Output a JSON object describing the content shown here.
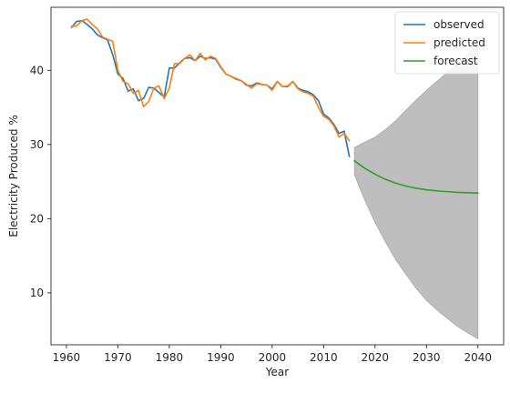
{
  "chart_data": {
    "type": "line",
    "title": "",
    "xlabel": "Year",
    "ylabel": "Electricity Produced %",
    "xlim": [
      1957,
      2045
    ],
    "ylim": [
      3,
      48.5
    ],
    "xticks": [
      1960,
      1970,
      1980,
      1990,
      2000,
      2010,
      2020,
      2030,
      2040
    ],
    "yticks": [
      10,
      20,
      30,
      40
    ],
    "grid": false,
    "legend_position": "top-right",
    "series": [
      {
        "name": "observed",
        "color": "#1f77b4",
        "x": [
          1961,
          1962,
          1963,
          1964,
          1965,
          1966,
          1967,
          1968,
          1969,
          1970,
          1971,
          1972,
          1973,
          1974,
          1975,
          1976,
          1977,
          1978,
          1979,
          1980,
          1981,
          1982,
          1983,
          1984,
          1985,
          1986,
          1987,
          1988,
          1989,
          1990,
          1991,
          1992,
          1993,
          1994,
          1995,
          1996,
          1997,
          1998,
          1999,
          2000,
          2001,
          2002,
          2003,
          2004,
          2005,
          2006,
          2007,
          2008,
          2009,
          2010,
          2011,
          2012,
          2013,
          2014,
          2015
        ],
        "y": [
          45.8,
          46.6,
          46.7,
          46.2,
          45.6,
          44.8,
          44.4,
          44.1,
          42.1,
          39.5,
          38.9,
          37.2,
          37.5,
          35.9,
          36.2,
          37.7,
          37.6,
          37.0,
          36.4,
          40.3,
          40.3,
          41.0,
          41.6,
          41.7,
          41.3,
          41.9,
          41.6,
          41.7,
          41.5,
          40.4,
          39.5,
          39.2,
          38.8,
          38.6,
          38.0,
          37.9,
          38.3,
          38.1,
          38.0,
          37.5,
          38.5,
          37.8,
          37.8,
          38.5,
          37.6,
          37.3,
          37.1,
          36.7,
          35.9,
          34.1,
          33.6,
          32.7,
          31.5,
          31.8,
          28.4
        ]
      },
      {
        "name": "predicted",
        "color": "#ff7f0e",
        "x": [
          1961,
          1962,
          1963,
          1964,
          1965,
          1966,
          1967,
          1968,
          1969,
          1970,
          1971,
          1972,
          1973,
          1974,
          1975,
          1976,
          1977,
          1978,
          1979,
          1980,
          1981,
          1982,
          1983,
          1984,
          1985,
          1986,
          1987,
          1988,
          1989,
          1990,
          1991,
          1992,
          1993,
          1994,
          1995,
          1996,
          1997,
          1998,
          1999,
          2000,
          2001,
          2002,
          2003,
          2004,
          2005,
          2006,
          2007,
          2008,
          2009,
          2010,
          2011,
          2012,
          2013,
          2014,
          2015
        ],
        "y": [
          45.9,
          46.0,
          46.7,
          46.9,
          46.2,
          45.6,
          44.5,
          44.2,
          43.9,
          40.0,
          38.5,
          38.2,
          36.9,
          37.3,
          35.1,
          35.8,
          37.6,
          37.9,
          36.2,
          37.6,
          40.9,
          40.9,
          41.6,
          42.1,
          41.3,
          42.3,
          41.4,
          41.9,
          41.6,
          40.5,
          39.5,
          39.2,
          38.9,
          38.6,
          38.1,
          37.6,
          38.2,
          38.1,
          38.0,
          37.3,
          38.5,
          37.8,
          37.9,
          38.5,
          37.5,
          37.1,
          36.9,
          36.5,
          35.0,
          33.8,
          33.4,
          32.5,
          31.0,
          31.5,
          30.5
        ]
      },
      {
        "name": "forecast",
        "color": "#2ca02c",
        "x": [
          2016,
          2018,
          2020,
          2022,
          2024,
          2026,
          2028,
          2030,
          2032,
          2034,
          2036,
          2038,
          2040
        ],
        "y": [
          27.8,
          26.8,
          26.0,
          25.3,
          24.8,
          24.4,
          24.1,
          23.9,
          23.75,
          23.65,
          23.55,
          23.5,
          23.45
        ]
      }
    ],
    "confidence_band": {
      "color": "#bebebe",
      "x": [
        2016,
        2018,
        2020,
        2022,
        2024,
        2026,
        2028,
        2030,
        2032,
        2034,
        2036,
        2038,
        2040
      ],
      "lower": [
        25.9,
        22.5,
        19.5,
        16.9,
        14.5,
        12.5,
        10.6,
        9.0,
        7.7,
        6.6,
        5.5,
        4.6,
        3.8
      ],
      "upper": [
        29.6,
        30.3,
        31.0,
        32.0,
        33.2,
        34.6,
        36.0,
        37.3,
        38.5,
        39.7,
        41.0,
        42.2,
        43.4
      ]
    }
  }
}
